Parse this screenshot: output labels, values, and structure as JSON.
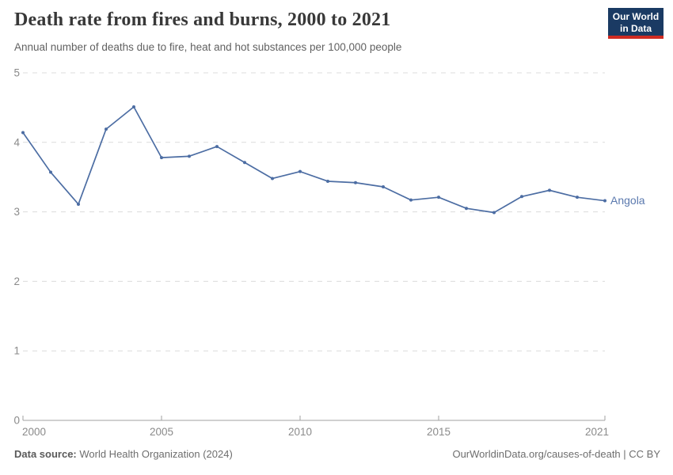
{
  "header": {
    "title": "Death rate from fires and burns, 2000 to 2021",
    "subtitle": "Annual number of deaths due to fire, heat and hot substances per 100,000 people"
  },
  "logo": {
    "line1": "Our World",
    "line2": "in Data",
    "bg_color": "#1a3a63",
    "stripe_color": "#cf2b22"
  },
  "chart_data": {
    "type": "line",
    "title": "Death rate from fires and burns, 2000 to 2021",
    "xlabel": "",
    "ylabel": "Annual number of deaths due to fire, heat and hot substances per 100,000 people",
    "xlim": [
      2000,
      2021
    ],
    "ylim": [
      0,
      5
    ],
    "xticks": [
      2000,
      2005,
      2010,
      2015,
      2021
    ],
    "yticks": [
      0,
      1,
      2,
      3,
      4,
      5
    ],
    "grid": "horizontal dashed",
    "legend_position": "end-of-line label",
    "series": [
      {
        "name": "Angola",
        "color": "#4c6da3",
        "label_color": "#5b79ae",
        "x": [
          2000,
          2001,
          2002,
          2003,
          2004,
          2005,
          2006,
          2007,
          2008,
          2009,
          2010,
          2011,
          2012,
          2013,
          2014,
          2015,
          2016,
          2017,
          2018,
          2019,
          2020,
          2021
        ],
        "values": [
          4.14,
          3.57,
          3.11,
          4.19,
          4.51,
          3.78,
          3.8,
          3.94,
          3.71,
          3.48,
          3.58,
          3.44,
          3.42,
          3.36,
          3.17,
          3.21,
          3.05,
          2.99,
          3.22,
          3.31,
          3.21,
          3.16
        ]
      }
    ],
    "axis_colors": {
      "gridline": "#dcdcdc",
      "axis_line": "#a1a1a1",
      "tick_label": "#8a8a8a"
    }
  },
  "footer": {
    "source_label": "Data source:",
    "source_text": " World Health Organization (2024)",
    "credit": "OurWorldinData.org/causes-of-death | CC BY"
  }
}
